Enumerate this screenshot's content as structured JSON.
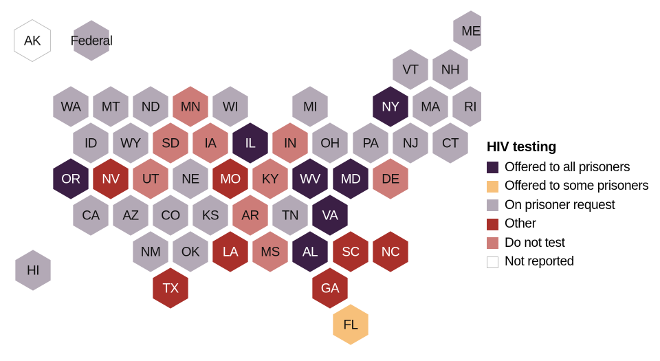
{
  "legend": {
    "title": "HIV testing",
    "items": [
      {
        "key": "all",
        "label": "Offered to all prisoners",
        "color": "#3b1f45"
      },
      {
        "key": "some",
        "label": "Offered to some prisoners",
        "color": "#f7c07a"
      },
      {
        "key": "request",
        "label": "On prisoner request",
        "color": "#b3a9b6"
      },
      {
        "key": "other",
        "label": "Other",
        "color": "#a9302a"
      },
      {
        "key": "notest",
        "label": "Do not test",
        "color": "#cd7c78"
      },
      {
        "key": "none",
        "label": "Not reported",
        "color": "#ffffff"
      }
    ]
  },
  "states": [
    {
      "abbr": "AK",
      "category": "none"
    },
    {
      "abbr": "Federal",
      "category": "request"
    },
    {
      "abbr": "ME",
      "category": "request"
    },
    {
      "abbr": "VT",
      "category": "request"
    },
    {
      "abbr": "NH",
      "category": "request"
    },
    {
      "abbr": "WA",
      "category": "request"
    },
    {
      "abbr": "MT",
      "category": "request"
    },
    {
      "abbr": "ND",
      "category": "request"
    },
    {
      "abbr": "MN",
      "category": "notest"
    },
    {
      "abbr": "WI",
      "category": "request"
    },
    {
      "abbr": "MI",
      "category": "request"
    },
    {
      "abbr": "NY",
      "category": "all"
    },
    {
      "abbr": "MA",
      "category": "request"
    },
    {
      "abbr": "RI",
      "category": "request"
    },
    {
      "abbr": "ID",
      "category": "request"
    },
    {
      "abbr": "WY",
      "category": "request"
    },
    {
      "abbr": "SD",
      "category": "notest"
    },
    {
      "abbr": "IA",
      "category": "notest"
    },
    {
      "abbr": "IL",
      "category": "all"
    },
    {
      "abbr": "IN",
      "category": "notest"
    },
    {
      "abbr": "OH",
      "category": "request"
    },
    {
      "abbr": "PA",
      "category": "request"
    },
    {
      "abbr": "NJ",
      "category": "request"
    },
    {
      "abbr": "CT",
      "category": "request"
    },
    {
      "abbr": "OR",
      "category": "all"
    },
    {
      "abbr": "NV",
      "category": "other"
    },
    {
      "abbr": "UT",
      "category": "notest"
    },
    {
      "abbr": "NE",
      "category": "request"
    },
    {
      "abbr": "MO",
      "category": "other"
    },
    {
      "abbr": "KY",
      "category": "notest"
    },
    {
      "abbr": "WV",
      "category": "all"
    },
    {
      "abbr": "MD",
      "category": "all"
    },
    {
      "abbr": "DE",
      "category": "notest"
    },
    {
      "abbr": "CA",
      "category": "request"
    },
    {
      "abbr": "AZ",
      "category": "request"
    },
    {
      "abbr": "CO",
      "category": "request"
    },
    {
      "abbr": "KS",
      "category": "request"
    },
    {
      "abbr": "AR",
      "category": "notest"
    },
    {
      "abbr": "TN",
      "category": "request"
    },
    {
      "abbr": "VA",
      "category": "all"
    },
    {
      "abbr": "NM",
      "category": "request"
    },
    {
      "abbr": "OK",
      "category": "request"
    },
    {
      "abbr": "LA",
      "category": "other"
    },
    {
      "abbr": "MS",
      "category": "notest"
    },
    {
      "abbr": "AL",
      "category": "all"
    },
    {
      "abbr": "SC",
      "category": "other"
    },
    {
      "abbr": "NC",
      "category": "other"
    },
    {
      "abbr": "HI",
      "category": "request"
    },
    {
      "abbr": "TX",
      "category": "other"
    },
    {
      "abbr": "GA",
      "category": "other"
    },
    {
      "abbr": "FL",
      "category": "some"
    }
  ]
}
